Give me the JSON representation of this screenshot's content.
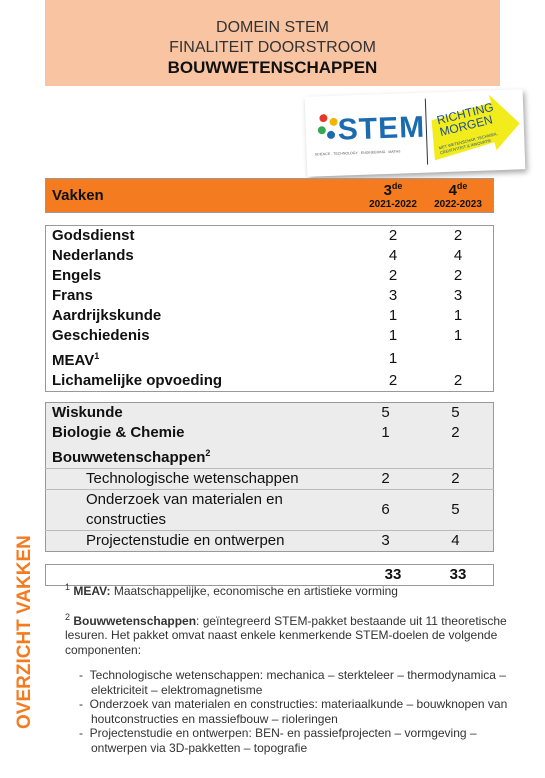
{
  "header": {
    "lines": [
      "DOMEIN STEM",
      "FINALITEIT DOORSTROOM",
      "BOUWWETENSCHAPPEN"
    ]
  },
  "logo": {
    "stem": "STEM",
    "stem_tagline": "SCIENCE · TECHNOLOGY · ENGINEERING · MATHS",
    "richting": "RICHTING MORGEN",
    "richting_tagline": "MET WETENSCHAP, TECHNIEK, CREATIVITEIT & INNOVATIE"
  },
  "table": {
    "columns": [
      {
        "label": "Vakken"
      },
      {
        "grade": "3",
        "sup": "de",
        "year": "2021-2022"
      },
      {
        "grade": "4",
        "sup": "de",
        "year": "2022-2023"
      }
    ],
    "groups": [
      {
        "rows": [
          {
            "name": "Godsdienst",
            "values": [
              2,
              2
            ]
          },
          {
            "name": "Nederlands",
            "values": [
              4,
              4
            ]
          },
          {
            "name": "Engels",
            "values": [
              2,
              2
            ]
          },
          {
            "name": "Frans",
            "values": [
              3,
              3
            ]
          },
          {
            "name": "Aardrijkskunde",
            "values": [
              1,
              1
            ]
          },
          {
            "name": "Geschiedenis",
            "values": [
              1,
              1
            ]
          },
          {
            "name": "MEAV",
            "sup": "1",
            "values": [
              1,
              null
            ]
          },
          {
            "name": "Lichamelijke opvoeding",
            "values": [
              2,
              2
            ]
          }
        ]
      },
      {
        "rows": [
          {
            "name": "Wiskunde",
            "values": [
              5,
              5
            ]
          },
          {
            "name": "Biologie & Chemie",
            "values": [
              1,
              2
            ]
          },
          {
            "name": "Bouwwetenschappen",
            "sup": "2",
            "values": [
              null,
              null
            ]
          },
          {
            "name": "Technologische wetenschappen",
            "indent": true,
            "values": [
              2,
              2
            ]
          },
          {
            "name": "Onderzoek van materialen en constructies",
            "indent": true,
            "values": [
              6,
              5
            ]
          },
          {
            "name": "Projectenstudie en ontwerpen",
            "indent": true,
            "values": [
              3,
              4
            ]
          }
        ]
      }
    ],
    "total": [
      33,
      33
    ]
  },
  "side_label": "OVERZICHT VAKKEN",
  "footnotes": [
    {
      "sup": "1",
      "term": "MEAV:",
      "text": " Maatschappelijke, economische en artistieke vorming"
    },
    {
      "sup": "2",
      "term": "Bouwwetenschappen",
      "text": ": geïntegreerd STEM-pakket bestaande uit 11 theoretische lesuren. Het pakket omvat naast enkele kenmerkende STEM-doelen de volgende componenten:",
      "bullets": [
        "Technologische wetenschappen: mechanica – sterkteleer – thermodynamica – elektriciteit – elektromagnetisme",
        "Onderzoek van materialen en constructies: materiaalkunde – bouwknopen van houtconstructies en massiefbouw – rioleringen",
        "Projectenstudie en ontwerpen: BEN- en passiefprojecten – vormgeving – ontwerpen via 3D-pakketten – topografie"
      ]
    }
  ]
}
